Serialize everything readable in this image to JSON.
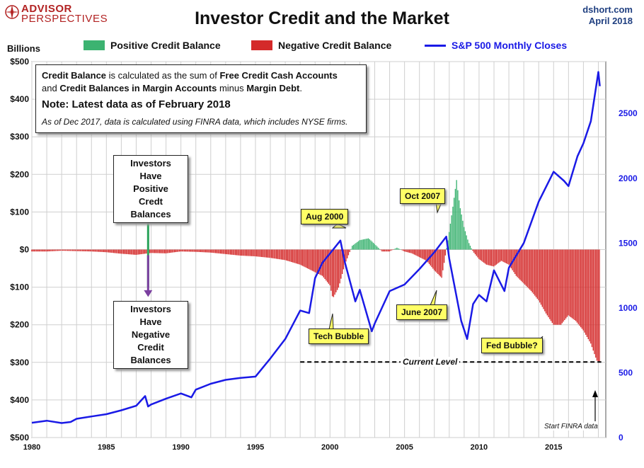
{
  "header": {
    "logo_name": "ADVISOR",
    "logo_sub": "PERSPECTIVES",
    "title": "Investor Credit and the Market",
    "source": "dshort.com",
    "date": "April 2018"
  },
  "units_label": "Billions",
  "legend": {
    "positive": "Positive Credit Balance",
    "negative": "Negative Credit Balance",
    "sp500": "S&P 500 Monthly Closes"
  },
  "infobox": {
    "b1": "Credit Balance",
    "t1": " is calculated as the sum of ",
    "b2": "Free Credit Cash Accounts",
    "t2": "and ",
    "b3": "Credit Balances in Margin Accounts",
    "t3": " minus ",
    "b4": "Margin Debt",
    "t4": ".",
    "note": "Note: Latest data as of February 2018",
    "footnote": "As of Dec 2017, data is calculated using FINRA data, which includes NYSE firms."
  },
  "callouts": {
    "positive_box": [
      "Investors Have",
      "Positive",
      "Credt Balances"
    ],
    "negative_box": [
      "Investors Have",
      "Negative",
      "Credit Balances"
    ],
    "aug2000": "Aug 2000",
    "oct2007": "Oct 2007",
    "june2007": "June 2007",
    "tech_bubble": "Tech Bubble",
    "fed_bubble": "Fed Bubble?",
    "current_level": "Current Level",
    "finra": "Start FINRA data"
  },
  "colors": {
    "positive": "#3cb371",
    "negative": "#d42a2a",
    "sp500": "#1a1ae6",
    "grid": "#cfcfcf",
    "highlight": "#ffff66"
  },
  "chart_data": {
    "type": "bar",
    "x_ticks": [
      "1980",
      "1985",
      "1990",
      "1995",
      "2000",
      "2005",
      "2010",
      "2015"
    ],
    "x_range": [
      1980,
      2018.5
    ],
    "y_left": {
      "ticks": [
        "$500",
        "$400",
        "$300",
        "$200",
        "$100",
        "$0",
        "$100",
        "$200",
        "$300",
        "$400",
        "$500"
      ],
      "values": [
        500,
        400,
        300,
        200,
        100,
        0,
        -100,
        -200,
        -300,
        -400,
        -500
      ],
      "range": [
        -500,
        500
      ]
    },
    "y_right": {
      "ticks": [
        "2500",
        "2000",
        "1500",
        "1000",
        "500",
        "0"
      ],
      "values": [
        2500,
        2000,
        1500,
        1000,
        500,
        0
      ],
      "range": [
        0,
        2900
      ]
    },
    "grid": true,
    "current_level": -299,
    "credit_balance": [
      [
        1980,
        -5
      ],
      [
        1981,
        -5
      ],
      [
        1982,
        -3
      ],
      [
        1983,
        -4
      ],
      [
        1984,
        -5
      ],
      [
        1985,
        -7
      ],
      [
        1986,
        -11
      ],
      [
        1987,
        -14
      ],
      [
        1988,
        -9
      ],
      [
        1989,
        -10
      ],
      [
        1990,
        -5
      ],
      [
        1991,
        -6
      ],
      [
        1992,
        -8
      ],
      [
        1993,
        -12
      ],
      [
        1994,
        -16
      ],
      [
        1995,
        -18
      ],
      [
        1996,
        -22
      ],
      [
        1997,
        -28
      ],
      [
        1998,
        -40
      ],
      [
        1999,
        -60
      ],
      [
        1999.5,
        -70
      ],
      [
        2000,
        -95
      ],
      [
        2000.2,
        -130
      ],
      [
        2000.6,
        -100
      ],
      [
        2001,
        -40
      ],
      [
        2001.5,
        10
      ],
      [
        2002,
        25
      ],
      [
        2002.6,
        30
      ],
      [
        2003,
        15
      ],
      [
        2003.5,
        -5
      ],
      [
        2004,
        -5
      ],
      [
        2004.5,
        5
      ],
      [
        2005,
        -5
      ],
      [
        2005.5,
        -10
      ],
      [
        2006,
        -20
      ],
      [
        2006.5,
        -30
      ],
      [
        2007,
        -55
      ],
      [
        2007.5,
        -75
      ],
      [
        2007.9,
        20
      ],
      [
        2008.2,
        100
      ],
      [
        2008.5,
        185
      ],
      [
        2008.7,
        120
      ],
      [
        2009,
        60
      ],
      [
        2009.3,
        20
      ],
      [
        2009.6,
        -5
      ],
      [
        2010,
        -25
      ],
      [
        2010.5,
        -40
      ],
      [
        2011,
        -45
      ],
      [
        2011.5,
        -30
      ],
      [
        2012,
        -40
      ],
      [
        2012.5,
        -70
      ],
      [
        2013,
        -90
      ],
      [
        2013.5,
        -110
      ],
      [
        2014,
        -135
      ],
      [
        2014.5,
        -170
      ],
      [
        2015,
        -200
      ],
      [
        2015.5,
        -200
      ],
      [
        2016,
        -175
      ],
      [
        2016.5,
        -190
      ],
      [
        2017,
        -215
      ],
      [
        2017.5,
        -250
      ],
      [
        2017.9,
        -295
      ],
      [
        2018.1,
        -299
      ]
    ],
    "sp500": [
      [
        1980,
        114
      ],
      [
        1981,
        130
      ],
      [
        1982,
        112
      ],
      [
        1982.6,
        120
      ],
      [
        1983,
        145
      ],
      [
        1984,
        163
      ],
      [
        1985,
        180
      ],
      [
        1986,
        210
      ],
      [
        1987,
        245
      ],
      [
        1987.6,
        320
      ],
      [
        1987.8,
        240
      ],
      [
        1988,
        255
      ],
      [
        1989,
        300
      ],
      [
        1990,
        340
      ],
      [
        1990.7,
        310
      ],
      [
        1991,
        370
      ],
      [
        1992,
        415
      ],
      [
        1993,
        445
      ],
      [
        1994,
        460
      ],
      [
        1995,
        470
      ],
      [
        1996,
        610
      ],
      [
        1997,
        760
      ],
      [
        1998,
        980
      ],
      [
        1998.6,
        960
      ],
      [
        1999,
        1230
      ],
      [
        1999.5,
        1350
      ],
      [
        2000,
        1420
      ],
      [
        2000.7,
        1520
      ],
      [
        2001,
        1350
      ],
      [
        2001.7,
        1050
      ],
      [
        2002,
        1140
      ],
      [
        2002.8,
        820
      ],
      [
        2003,
        880
      ],
      [
        2004,
        1130
      ],
      [
        2005,
        1180
      ],
      [
        2006,
        1300
      ],
      [
        2007,
        1430
      ],
      [
        2007.8,
        1550
      ],
      [
        2008,
        1380
      ],
      [
        2008.8,
        900
      ],
      [
        2009.2,
        760
      ],
      [
        2009.6,
        1030
      ],
      [
        2010,
        1100
      ],
      [
        2010.5,
        1050
      ],
      [
        2011,
        1290
      ],
      [
        2011.7,
        1130
      ],
      [
        2012,
        1310
      ],
      [
        2013,
        1500
      ],
      [
        2014,
        1820
      ],
      [
        2015,
        2050
      ],
      [
        2015.7,
        1980
      ],
      [
        2016,
        1940
      ],
      [
        2016.6,
        2170
      ],
      [
        2017,
        2270
      ],
      [
        2017.5,
        2440
      ],
      [
        2018,
        2820
      ],
      [
        2018.1,
        2710
      ]
    ]
  }
}
